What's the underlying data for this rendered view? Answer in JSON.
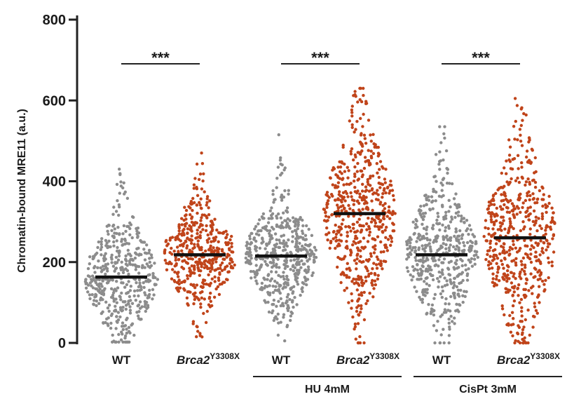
{
  "chart_data": {
    "type": "scatter",
    "subtype": "beeswarm",
    "title": "",
    "ylabel": "Chromatin-bound MRE11 (a.u.)",
    "ylim": [
      0,
      800
    ],
    "yticks": [
      0,
      200,
      400,
      600,
      800
    ],
    "grid": false,
    "colors": {
      "WT": "#8c8c8c",
      "mutant": "#c0441a",
      "median": "#111111"
    },
    "categories": [
      {
        "label": "WT",
        "italic_part": "",
        "superscript": "",
        "median": 163,
        "min": 2,
        "max": 430,
        "q1": 120,
        "q3": 220,
        "n": 450,
        "color": "#8c8c8c"
      },
      {
        "label": "",
        "italic_part": "Brca2",
        "superscript": "Y3308X",
        "median": 218,
        "min": 15,
        "max": 470,
        "q1": 175,
        "q3": 265,
        "n": 450,
        "color": "#c0441a"
      },
      {
        "label": "WT",
        "italic_part": "",
        "superscript": "",
        "median": 215,
        "min": 5,
        "max": 515,
        "q1": 170,
        "q3": 265,
        "n": 480,
        "color": "#8c8c8c"
      },
      {
        "label": "",
        "italic_part": "Brca2",
        "superscript": "Y3308X",
        "median": 320,
        "min": 0,
        "max": 630,
        "q1": 250,
        "q3": 400,
        "n": 560,
        "color": "#c0441a"
      },
      {
        "label": "WT",
        "italic_part": "",
        "superscript": "",
        "median": 218,
        "min": 0,
        "max": 535,
        "q1": 160,
        "q3": 280,
        "n": 480,
        "color": "#8c8c8c"
      },
      {
        "label": "",
        "italic_part": "Brca2",
        "superscript": "Y3308X",
        "median": 260,
        "min": 0,
        "max": 605,
        "q1": 180,
        "q3": 340,
        "n": 520,
        "color": "#c0441a"
      }
    ],
    "groups": [
      {
        "label": "HU 4mM",
        "spans": [
          2,
          3
        ]
      },
      {
        "label": "CisPt 3mM",
        "spans": [
          4,
          5
        ]
      }
    ],
    "significance": [
      {
        "pair": [
          0,
          1
        ],
        "label": "***"
      },
      {
        "pair": [
          2,
          3
        ],
        "label": "***"
      },
      {
        "pair": [
          4,
          5
        ],
        "label": "***"
      }
    ]
  }
}
